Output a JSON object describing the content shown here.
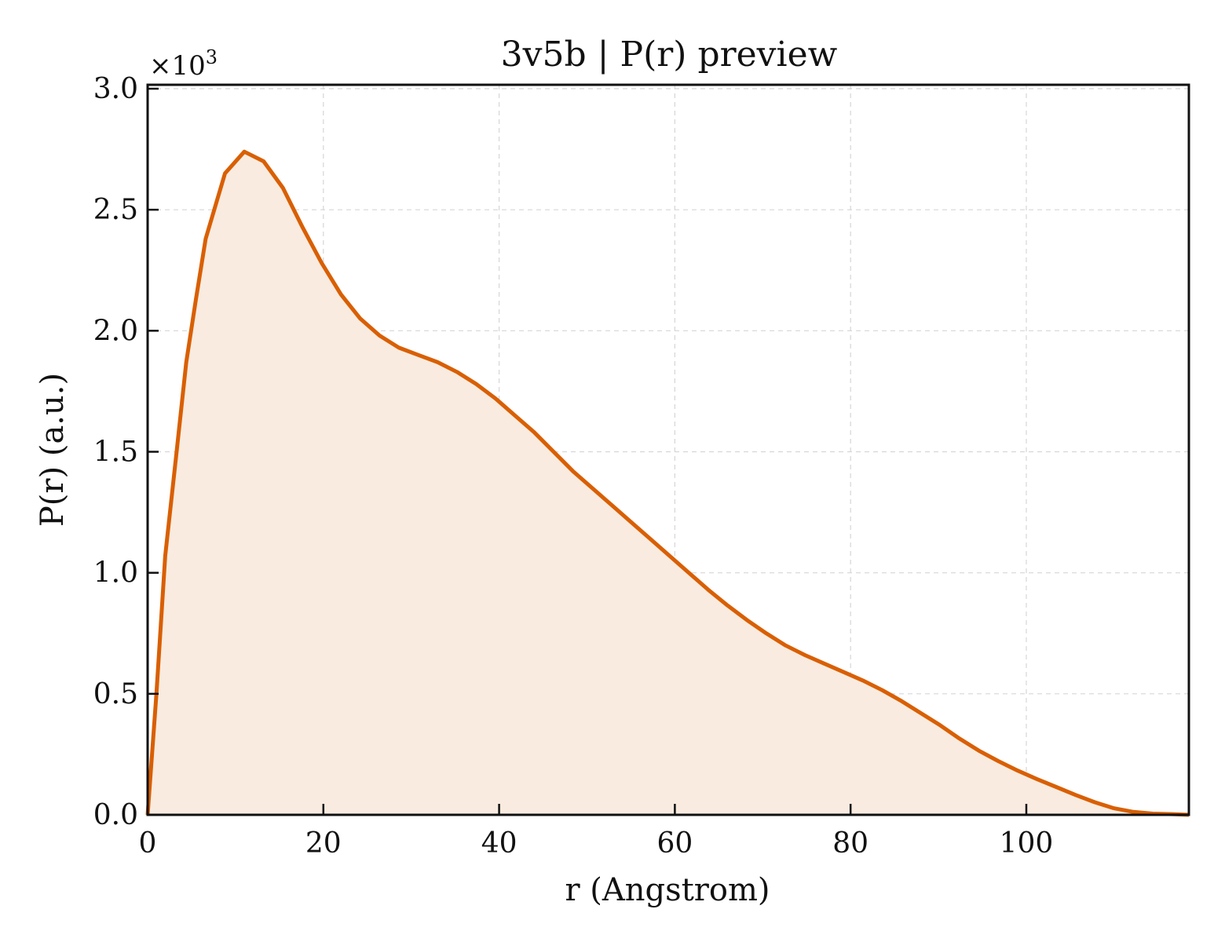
{
  "chart_data": {
    "type": "area",
    "title": "3v5b | P(r) preview",
    "xlabel": "r (Angstrom)",
    "ylabel": "P(r) (a.u.)",
    "y_multiplier": {
      "base": "×10",
      "exponent": "3"
    },
    "xlim": [
      0,
      118.5
    ],
    "ylim": [
      0,
      3.0
    ],
    "x_ticks": [
      0,
      20,
      40,
      60,
      80,
      100
    ],
    "x_tick_labels": [
      "0",
      "20",
      "40",
      "60",
      "80",
      "100"
    ],
    "y_ticks": [
      0,
      0.5,
      1.0,
      1.5,
      2.0,
      2.5,
      3.0
    ],
    "y_tick_labels": [
      "0.0",
      "0.5",
      "1.0",
      "1.5",
      "2.0",
      "2.5",
      "3.0"
    ],
    "grid": true,
    "line_color": "#d95f02",
    "fill_color": "#f9ebe0",
    "series": [
      {
        "x": [
          0,
          1.0,
          2.0,
          3.3,
          4.4,
          5.5,
          6.6,
          8.8,
          11.0,
          13.2,
          15.4,
          17.6,
          19.8,
          22.0,
          24.2,
          26.4,
          28.6,
          30.8,
          33.0,
          35.2,
          37.4,
          39.6,
          41.8,
          44.0,
          46.2,
          48.4,
          50.6,
          52.8,
          55.0,
          57.2,
          59.4,
          61.6,
          63.8,
          66.0,
          68.2,
          70.4,
          72.6,
          74.8,
          77.0,
          79.2,
          81.4,
          83.6,
          85.8,
          88.0,
          90.2,
          92.4,
          94.6,
          96.8,
          99.0,
          101.2,
          103.4,
          105.6,
          107.8,
          110.0,
          112.2,
          114.4,
          116.6,
          118.5
        ],
        "y": [
          0,
          0.5,
          1.07,
          1.5,
          1.87,
          2.13,
          2.38,
          2.65,
          2.74,
          2.7,
          2.59,
          2.43,
          2.28,
          2.15,
          2.05,
          1.98,
          1.93,
          1.9,
          1.87,
          1.83,
          1.78,
          1.72,
          1.65,
          1.58,
          1.5,
          1.42,
          1.35,
          1.28,
          1.21,
          1.14,
          1.07,
          1.0,
          0.93,
          0.865,
          0.805,
          0.75,
          0.7,
          0.66,
          0.625,
          0.59,
          0.555,
          0.515,
          0.47,
          0.42,
          0.37,
          0.315,
          0.265,
          0.222,
          0.183,
          0.148,
          0.115,
          0.082,
          0.052,
          0.027,
          0.012,
          0.005,
          0.003,
          0
        ]
      }
    ]
  }
}
